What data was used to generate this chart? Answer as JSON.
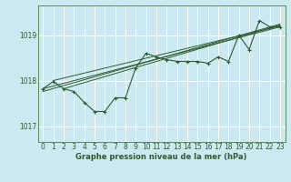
{
  "xlabel": "Graphe pression niveau de la mer (hPa)",
  "background_color": "#cce8f0",
  "grid_color": "#aad4e0",
  "line_color": "#2d5c2d",
  "text_color": "#2d5c2d",
  "ylim": [
    1016.65,
    1019.65
  ],
  "xlim": [
    -0.5,
    23.5
  ],
  "yticks": [
    1017,
    1018,
    1019
  ],
  "xticks": [
    0,
    1,
    2,
    3,
    4,
    5,
    6,
    7,
    8,
    9,
    10,
    11,
    12,
    13,
    14,
    15,
    16,
    17,
    18,
    19,
    20,
    21,
    22,
    23
  ],
  "pressure_data": [
    1017.82,
    1017.98,
    1017.82,
    1017.76,
    1017.52,
    1017.32,
    1017.32,
    1017.62,
    1017.62,
    1018.28,
    1018.6,
    1018.52,
    1018.46,
    1018.42,
    1018.42,
    1018.42,
    1018.38,
    1018.52,
    1018.42,
    1019.0,
    1018.68,
    1019.32,
    1019.18,
    1019.18
  ],
  "trend_lines": [
    [
      0,
      1017.82,
      23,
      1019.18
    ],
    [
      0,
      1017.76,
      23,
      1019.24
    ],
    [
      1,
      1018.0,
      23,
      1019.2
    ],
    [
      2,
      1017.82,
      23,
      1019.22
    ]
  ]
}
